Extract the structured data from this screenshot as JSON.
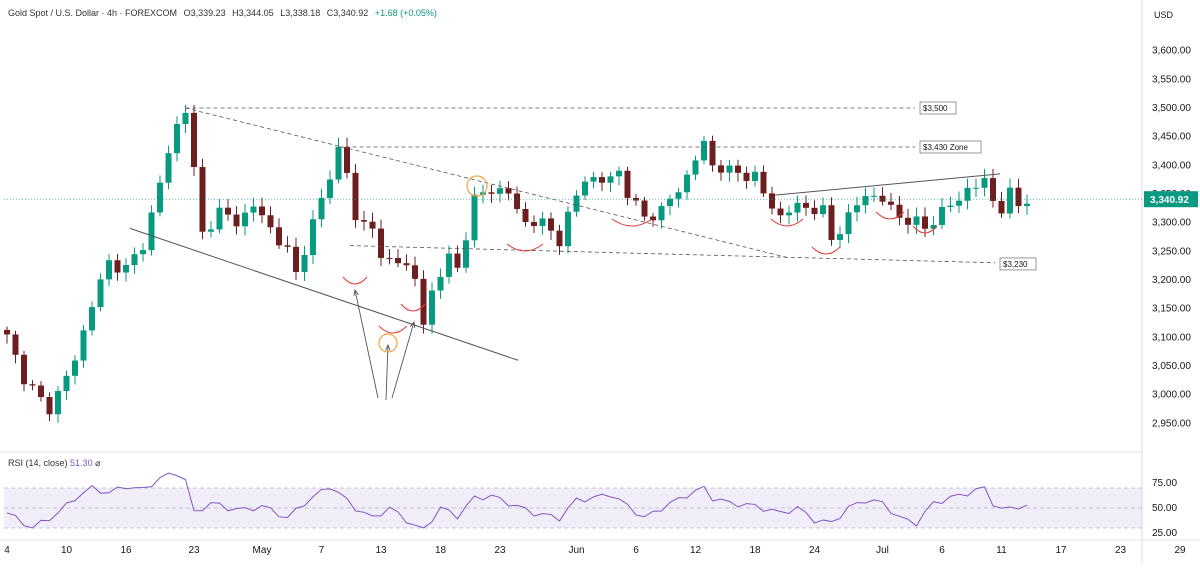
{
  "header": {
    "symbol": "Gold Spot / U.S. Dollar · 4h · FOREXCOM",
    "open": "O3,339.23",
    "high": "H3,344.05",
    "low": "L3,338.18",
    "close": "C3,340.92",
    "change": "+1.68 (+0.05%)"
  },
  "currency": "USD",
  "last_price": "3,340.92",
  "rsi_label": "RSI (14, close)",
  "rsi_value": "51.30",
  "rsi_ticks": [
    "75.00",
    "50.00",
    "25.00"
  ],
  "colors": {
    "up": "#089981",
    "down": "#6d1f1f",
    "rsi": "#7e57c2",
    "last": "#089981",
    "highlight_ring": "#f7a33c",
    "arc": "#e53935"
  },
  "annotations": [
    "$3,500",
    "$3,430 Zone",
    "$3,230"
  ],
  "chart_data": {
    "type": "candlestick",
    "title": "Gold Spot / U.S. Dollar · 4h · FOREXCOM",
    "ylabel": "USD",
    "ylim": [
      2900,
      3650
    ],
    "ytick_labels": [
      "3,600.00",
      "3,550.00",
      "3,500.00",
      "3,450.00",
      "3,400.00",
      "3,350.00",
      "3,300.00",
      "3,250.00",
      "3,200.00",
      "3,150.00",
      "3,100.00",
      "3,050.00",
      "3,000.00",
      "2,950.00"
    ],
    "ytick_values": [
      3600,
      3550,
      3500,
      3450,
      3400,
      3350,
      3300,
      3250,
      3200,
      3150,
      3100,
      3050,
      3000,
      2950
    ],
    "xtick_labels": [
      "4",
      "10",
      "16",
      "23",
      "May",
      "7",
      "13",
      "18",
      "23",
      "Jun",
      "6",
      "12",
      "18",
      "24",
      "Jul",
      "6",
      "11",
      "17",
      "23",
      "29"
    ],
    "xtick_index": [
      0,
      7,
      14,
      22,
      30,
      37,
      44,
      51,
      58,
      67,
      74,
      81,
      88,
      95,
      103,
      110,
      117,
      124,
      131,
      138
    ],
    "close_keypoints": [
      [
        0,
        3100
      ],
      [
        2,
        3030
      ],
      [
        4,
        2990
      ],
      [
        5,
        2975
      ],
      [
        8,
        3060
      ],
      [
        10,
        3160
      ],
      [
        12,
        3230
      ],
      [
        14,
        3220
      ],
      [
        16,
        3260
      ],
      [
        18,
        3370
      ],
      [
        20,
        3470
      ],
      [
        21,
        3500
      ],
      [
        22,
        3390
      ],
      [
        23,
        3280
      ],
      [
        25,
        3320
      ],
      [
        27,
        3300
      ],
      [
        29,
        3330
      ],
      [
        31,
        3290
      ],
      [
        33,
        3250
      ],
      [
        34,
        3210
      ],
      [
        36,
        3300
      ],
      [
        38,
        3380
      ],
      [
        39,
        3430
      ],
      [
        40,
        3390
      ],
      [
        41,
        3300
      ],
      [
        43,
        3300
      ],
      [
        44,
        3230
      ],
      [
        46,
        3240
      ],
      [
        48,
        3200
      ],
      [
        49,
        3125
      ],
      [
        50,
        3180
      ],
      [
        52,
        3240
      ],
      [
        53,
        3220
      ],
      [
        55,
        3340
      ],
      [
        57,
        3360
      ],
      [
        59,
        3350
      ],
      [
        61,
        3300
      ],
      [
        63,
        3300
      ],
      [
        65,
        3270
      ],
      [
        66,
        3310
      ],
      [
        68,
        3380
      ],
      [
        70,
        3370
      ],
      [
        72,
        3390
      ],
      [
        73,
        3350
      ],
      [
        75,
        3310
      ],
      [
        77,
        3320
      ],
      [
        80,
        3380
      ],
      [
        82,
        3440
      ],
      [
        83,
        3400
      ],
      [
        85,
        3390
      ],
      [
        88,
        3380
      ],
      [
        89,
        3350
      ],
      [
        91,
        3310
      ],
      [
        93,
        3330
      ],
      [
        96,
        3320
      ],
      [
        97,
        3270
      ],
      [
        99,
        3310
      ],
      [
        101,
        3350
      ],
      [
        103,
        3340
      ],
      [
        105,
        3310
      ],
      [
        107,
        3300
      ],
      [
        108,
        3290
      ],
      [
        110,
        3320
      ],
      [
        112,
        3340
      ],
      [
        113,
        3360
      ],
      [
        115,
        3370
      ],
      [
        116,
        3340
      ],
      [
        117,
        3325
      ],
      [
        118,
        3350
      ],
      [
        119,
        3330
      ],
      [
        120,
        3341
      ]
    ],
    "rsi_keypoints": [
      [
        0,
        45
      ],
      [
        3,
        30
      ],
      [
        6,
        45
      ],
      [
        8,
        60
      ],
      [
        10,
        70
      ],
      [
        12,
        65
      ],
      [
        14,
        72
      ],
      [
        16,
        68
      ],
      [
        18,
        80
      ],
      [
        20,
        85
      ],
      [
        21,
        78
      ],
      [
        22,
        45
      ],
      [
        24,
        55
      ],
      [
        26,
        50
      ],
      [
        28,
        48
      ],
      [
        30,
        52
      ],
      [
        33,
        40
      ],
      [
        35,
        55
      ],
      [
        38,
        72
      ],
      [
        39,
        65
      ],
      [
        41,
        50
      ],
      [
        43,
        40
      ],
      [
        45,
        50
      ],
      [
        48,
        32
      ],
      [
        49,
        28
      ],
      [
        51,
        50
      ],
      [
        53,
        42
      ],
      [
        55,
        60
      ],
      [
        57,
        62
      ],
      [
        59,
        55
      ],
      [
        62,
        45
      ],
      [
        65,
        40
      ],
      [
        67,
        58
      ],
      [
        69,
        60
      ],
      [
        71,
        64
      ],
      [
        73,
        52
      ],
      [
        75,
        40
      ],
      [
        77,
        50
      ],
      [
        80,
        63
      ],
      [
        82,
        70
      ],
      [
        83,
        60
      ],
      [
        85,
        55
      ],
      [
        88,
        52
      ],
      [
        91,
        45
      ],
      [
        93,
        50
      ],
      [
        95,
        38
      ],
      [
        97,
        35
      ],
      [
        99,
        50
      ],
      [
        101,
        58
      ],
      [
        103,
        55
      ],
      [
        105,
        40
      ],
      [
        107,
        35
      ],
      [
        109,
        55
      ],
      [
        111,
        60
      ],
      [
        113,
        65
      ],
      [
        115,
        70
      ],
      [
        116,
        55
      ],
      [
        117,
        48
      ],
      [
        119,
        52
      ],
      [
        120,
        51
      ]
    ],
    "rsi_ylim": [
      20,
      90
    ],
    "n_bars": 121,
    "support_line_label": "$3,230",
    "resistance_labels": [
      "$3,500",
      "$3,430 Zone"
    ],
    "grid": false
  }
}
